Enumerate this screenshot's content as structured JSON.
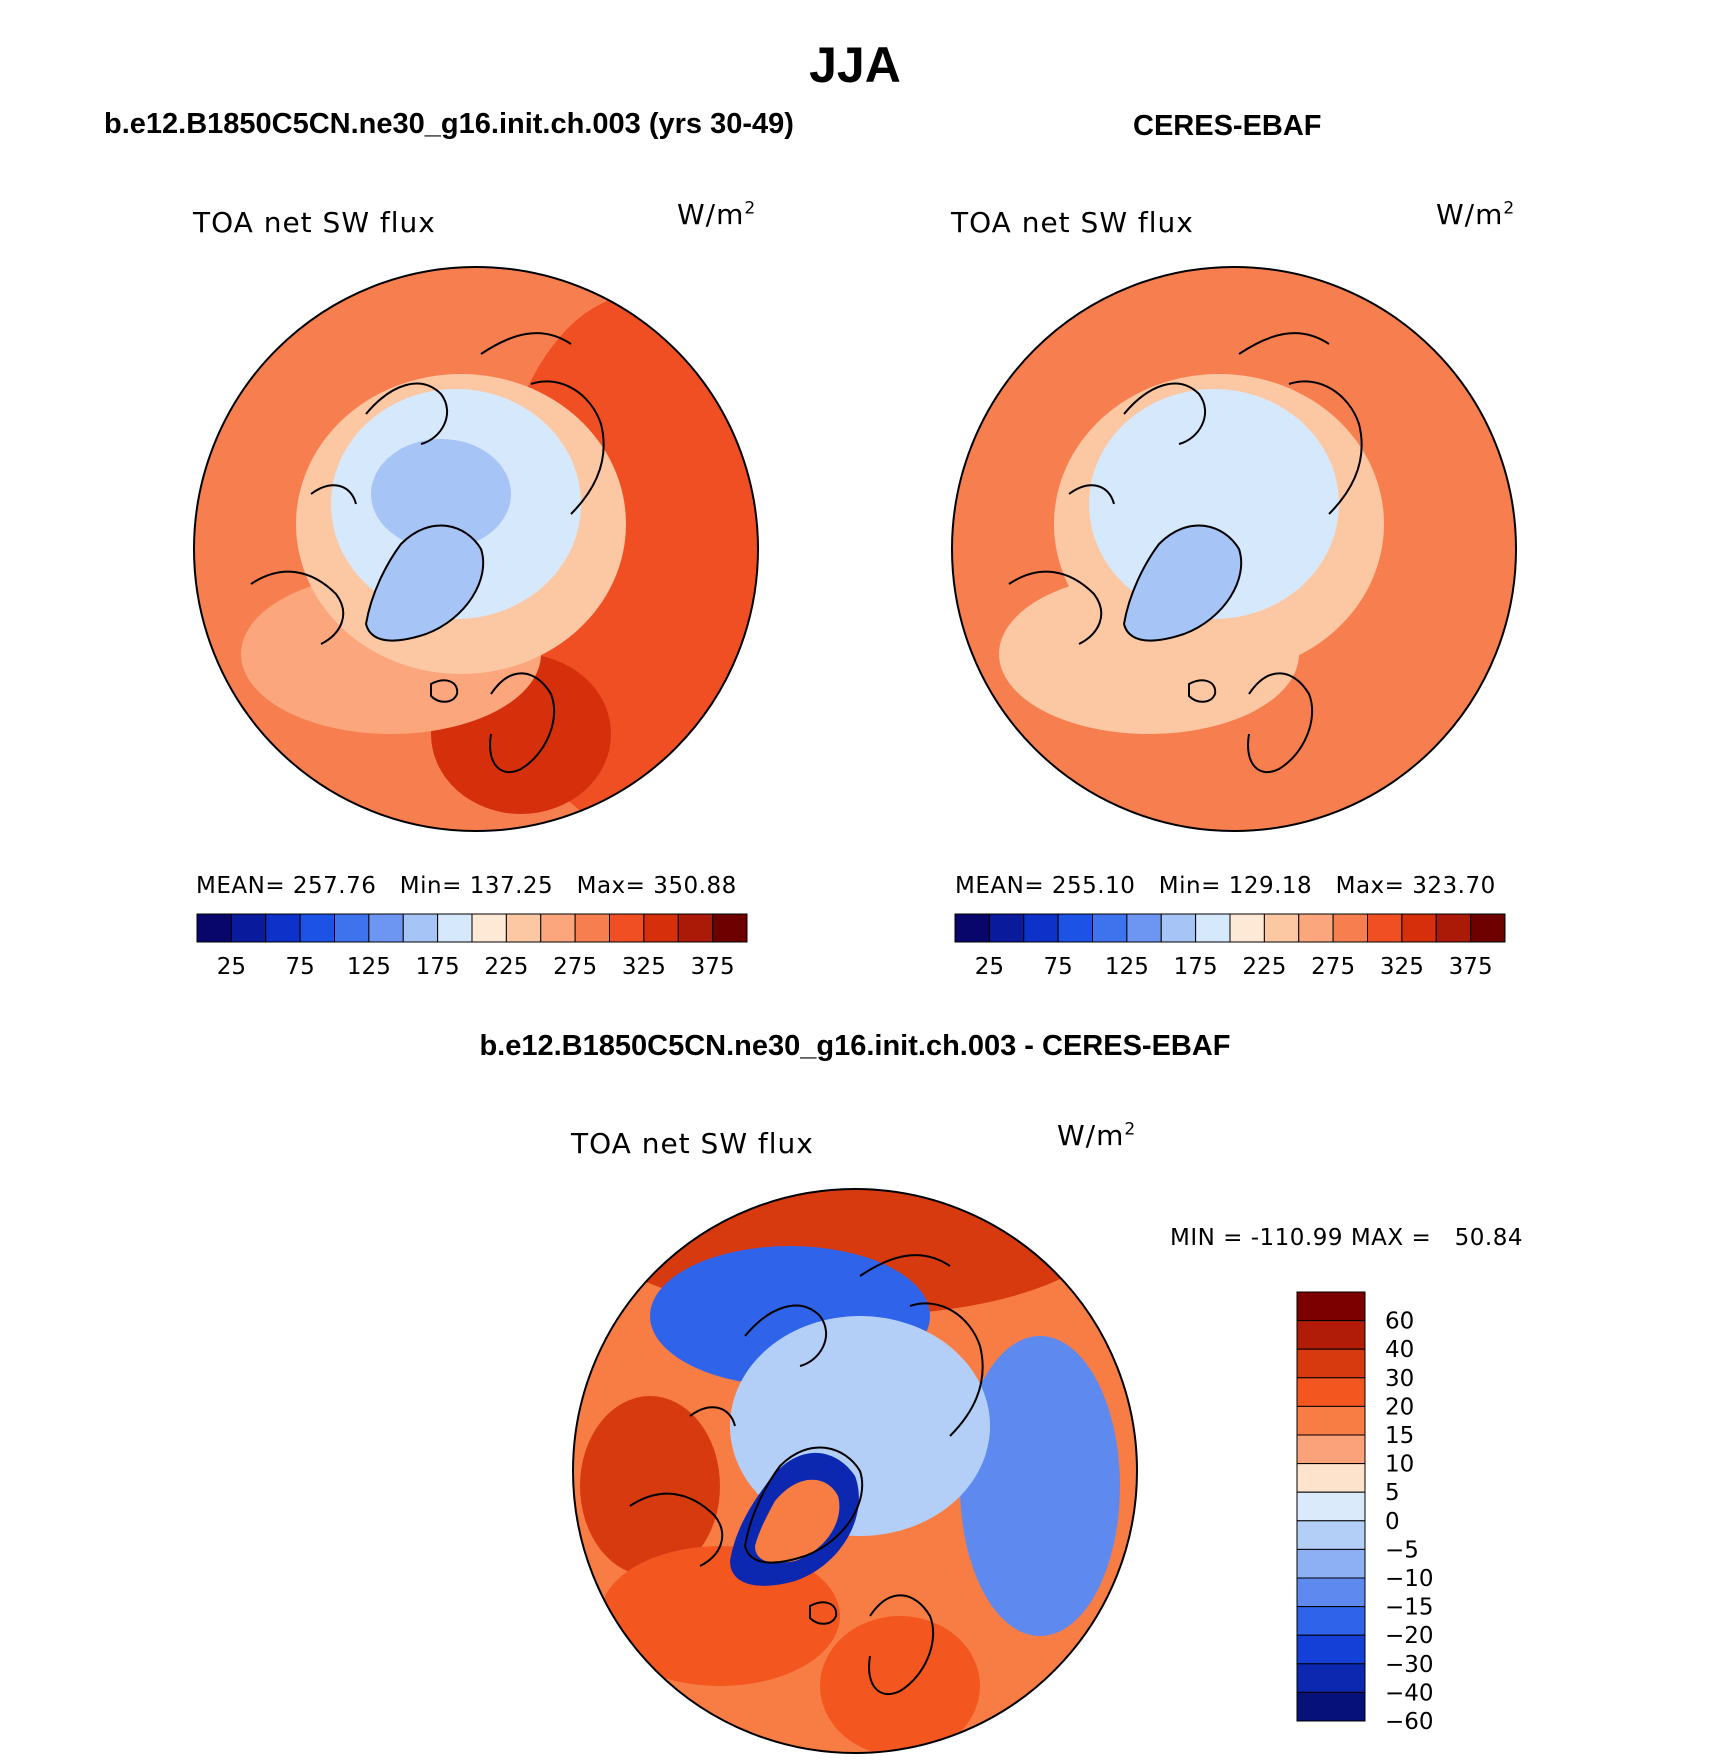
{
  "figure": {
    "title": "JJA",
    "diff_title": "b.e12.B1850C5CN.ne30_g16.init.ch.003 - CERES-EBAF"
  },
  "panels": [
    {
      "title": "b.e12.B1850C5CN.ne30_g16.init.ch.003 (yrs 30-49)",
      "variable": "TOA net SW flux",
      "units": "W/m",
      "units_sup": "2",
      "stats": "MEAN= 257.76   Min= 137.25   Max= 350.88"
    },
    {
      "title": "CERES-EBAF",
      "variable": "TOA net SW flux",
      "units": "W/m",
      "units_sup": "2",
      "stats": "MEAN= 255.10   Min= 129.18   Max= 323.70"
    },
    {
      "title": "",
      "variable": "TOA net SW flux",
      "units": "W/m",
      "units_sup": "2",
      "stats": "MIN = -110.99 MAX =   50.84"
    }
  ],
  "chart_data": [
    {
      "type": "heatmap",
      "projection": "north-polar-stereographic",
      "title": "b.e12.B1850C5CN.ne30_g16.init.ch.003 (yrs 30-49)",
      "variable": "TOA net SW flux",
      "units": "W/m2",
      "mean": 257.76,
      "min": 137.25,
      "max": 350.88,
      "colorbar_levels": [
        25,
        50,
        75,
        100,
        125,
        150,
        175,
        200,
        225,
        250,
        275,
        300,
        325,
        350,
        375
      ],
      "colorbar_tick_labels": [
        "25",
        "75",
        "125",
        "175",
        "225",
        "275",
        "325",
        "375"
      ],
      "colorbar_colors": [
        "#08066b",
        "#0a1a9c",
        "#0e32c9",
        "#1c52e6",
        "#3f73ee",
        "#6d96f2",
        "#a7c4f7",
        "#d6e8fb",
        "#fde9d6",
        "#fcc8a4",
        "#fba67c",
        "#f77f4f",
        "#f04f24",
        "#d52f0c",
        "#aa1a06",
        "#6e0000"
      ],
      "fields": {
        "background": 290,
        "east_mid": 310,
        "west_mid": 285,
        "arctic_ocean": 185,
        "central_arctic": 170,
        "greenland": 155,
        "north_atlantic": 255,
        "arctic_rim": 230,
        "scandinavia": 330
      }
    },
    {
      "type": "heatmap",
      "projection": "north-polar-stereographic",
      "title": "CERES-EBAF",
      "variable": "TOA net SW flux",
      "units": "W/m2",
      "mean": 255.1,
      "min": 129.18,
      "max": 323.7,
      "colorbar_levels": [
        25,
        50,
        75,
        100,
        125,
        150,
        175,
        200,
        225,
        250,
        275,
        300,
        325,
        350,
        375
      ],
      "colorbar_tick_labels": [
        "25",
        "75",
        "125",
        "175",
        "225",
        "275",
        "325",
        "375"
      ],
      "colorbar_colors": [
        "#08066b",
        "#0a1a9c",
        "#0e32c9",
        "#1c52e6",
        "#3f73ee",
        "#6d96f2",
        "#a7c4f7",
        "#d6e8fb",
        "#fde9d6",
        "#fcc8a4",
        "#fba67c",
        "#f77f4f",
        "#f04f24",
        "#d52f0c",
        "#aa1a06",
        "#6e0000"
      ],
      "fields": {
        "background": 285,
        "east_mid": 295,
        "west_mid": 285,
        "arctic_ocean": 190,
        "central_arctic": 190,
        "greenland": 160,
        "north_atlantic": 240,
        "arctic_rim": 230,
        "scandinavia": 290
      }
    },
    {
      "type": "heatmap",
      "projection": "north-polar-stereographic",
      "title": "b.e12.B1850C5CN.ne30_g16.init.ch.003 - CERES-EBAF",
      "variable": "TOA net SW flux",
      "units": "W/m2",
      "min": -110.99,
      "max": 50.84,
      "colorbar_levels": [
        -60,
        -40,
        -30,
        -20,
        -15,
        -10,
        -5,
        0,
        5,
        10,
        15,
        20,
        30,
        40,
        60
      ],
      "colorbar_tick_labels": [
        "60",
        "40",
        "30",
        "20",
        "15",
        "10",
        "5",
        "0",
        "−5",
        "−10",
        "−15",
        "−20",
        "−30",
        "−40",
        "−60"
      ],
      "colorbar_colors_top_to_bottom": [
        "#7d0000",
        "#b01c08",
        "#d83a10",
        "#f4561f",
        "#f87d45",
        "#fba27b",
        "#fde2cc",
        "#dbeafb",
        "#b3cff7",
        "#8cb0f3",
        "#5e8af0",
        "#2f63ea",
        "#1540d8",
        "#0c28b0",
        "#06127a"
      ],
      "fields": {
        "background": 12,
        "siberia": 25,
        "alaska": -25,
        "canada_west": 25,
        "central_arctic": -7,
        "greenland_coast": -55,
        "greenland_interior": 12,
        "north_atlantic": 15,
        "east_pacific": -20,
        "scandinavia": 18
      }
    }
  ]
}
